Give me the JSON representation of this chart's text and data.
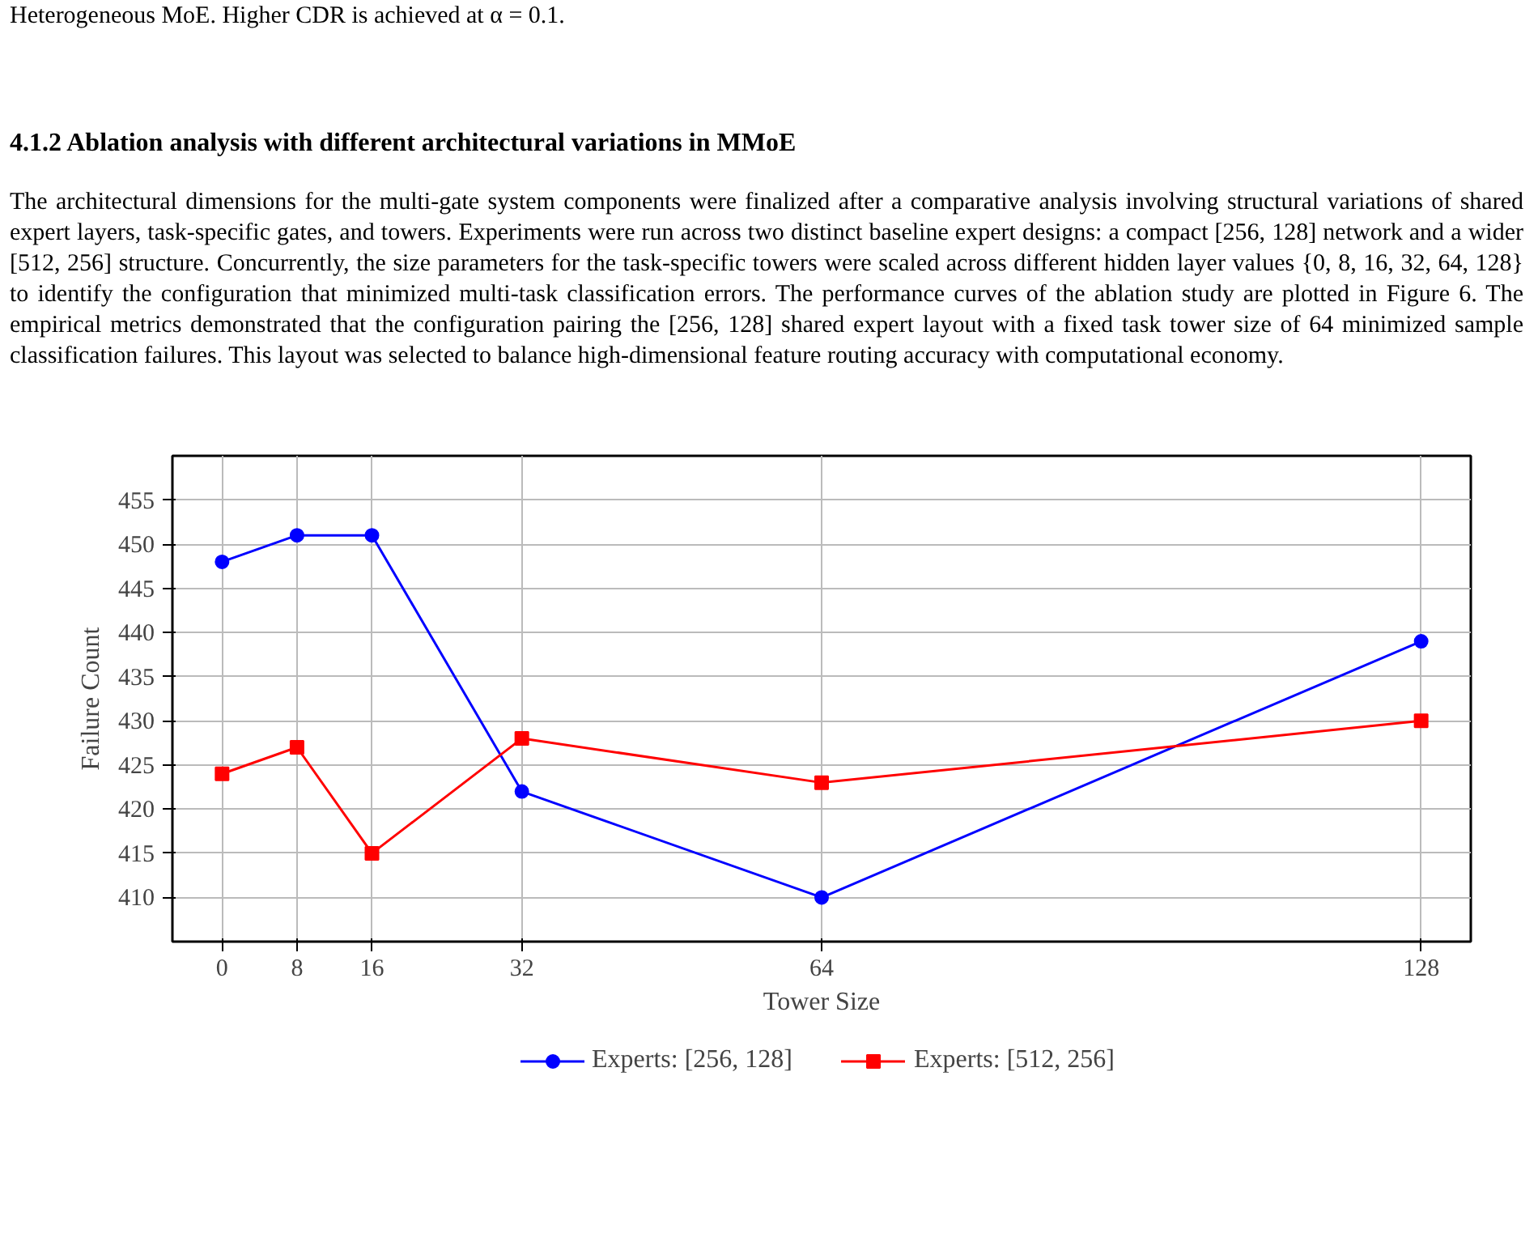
{
  "chart_data": {
    "type": "line",
    "title": "4.1.2   Ablation analysis with different architectural variations in MMoE",
    "annotations": [
      "Heterogeneous MoE. Higher CDR is achieved at α = 0.1.",
      "The architectural dimensions for the multi-gate system components were finalized after a comparative analysis involving structural variations of shared expert layers, task-specific gates, and towers. Experiments were run across two distinct baseline expert designs: a compact [256, 128] network and a wider [512, 256] structure. Concurrently, the size parameters for the task-specific towers were scaled across different hidden layer values {0, 8, 16, 32, 64, 128} to identify the configuration that minimized multi-task classification errors. The performance curves of the ablation study are plotted in Figure 6. The empirical metrics demonstrated that the configuration pairing the [256, 128] shared expert layout with a fixed task tower size of 64 minimized sample classification failures. This layout was selected to balance high-dimensional feature routing accuracy with computational economy."
    ],
    "xlabel": "Tower Size",
    "ylabel": "Failure Count",
    "x": [
      0,
      8,
      16,
      32,
      64,
      128
    ],
    "series": [
      {
        "name": "Experts: [256, 128]",
        "color": "#0000ff",
        "marker": "circle",
        "values": [
          448,
          451,
          451,
          422,
          410,
          439
        ]
      },
      {
        "name": "Experts: [512, 256]",
        "color": "#ff0000",
        "marker": "square",
        "values": [
          424,
          427,
          415,
          428,
          423,
          430
        ]
      }
    ],
    "xlim": [
      -5.3,
      133.3
    ],
    "ylim": [
      405,
      460
    ],
    "xticks": [
      0,
      8,
      16,
      32,
      64,
      128
    ],
    "yticks": [
      410,
      415,
      420,
      425,
      430,
      435,
      440,
      445,
      450,
      455
    ],
    "grid": true,
    "legend": "bottom",
    "line_style": "solid"
  }
}
